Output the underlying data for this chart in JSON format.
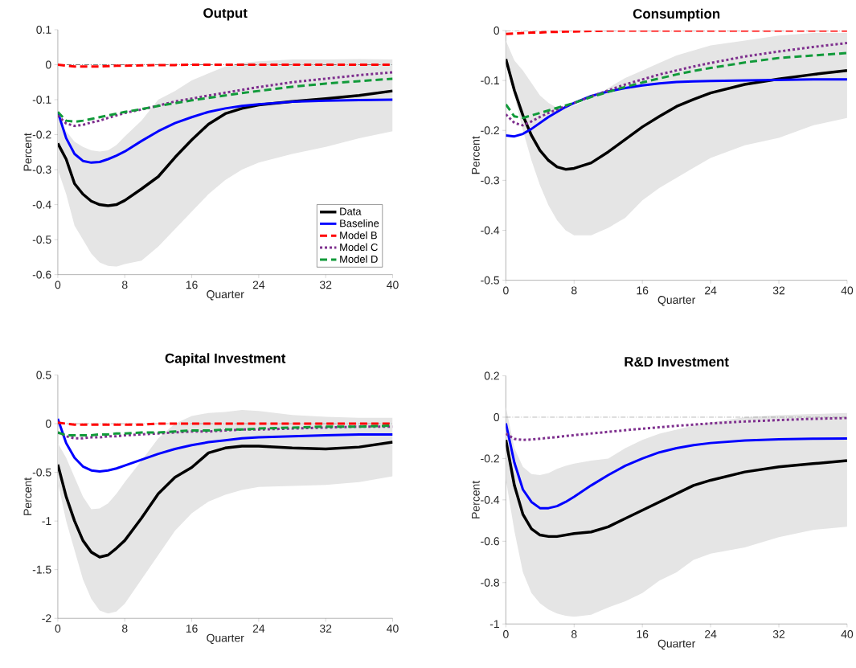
{
  "chart_data": [
    {
      "type": "line",
      "title": "Output",
      "xlabel": "Quarter",
      "ylabel": "Percent",
      "x": [
        0,
        1,
        2,
        3,
        4,
        5,
        6,
        7,
        8,
        10,
        12,
        14,
        16,
        18,
        20,
        22,
        24,
        28,
        32,
        36,
        40
      ],
      "xlim": [
        0,
        40
      ],
      "xticks": [
        0,
        8,
        16,
        24,
        32,
        40
      ],
      "ylim": [
        -0.6,
        0.1
      ],
      "yticks": [
        -0.6,
        -0.5,
        -0.4,
        -0.3,
        -0.2,
        -0.1,
        0,
        0.1
      ],
      "ref_lines": [
        {
          "axis": "y",
          "value": 0,
          "color": "#555555"
        }
      ],
      "legend": "bottom right",
      "series": [
        {
          "name": "Data",
          "color": "#000000",
          "line_style": "solid",
          "values": [
            -0.225,
            -0.27,
            -0.34,
            -0.37,
            -0.39,
            -0.4,
            -0.403,
            -0.4,
            -0.388,
            -0.355,
            -0.32,
            -0.265,
            -0.215,
            -0.17,
            -0.14,
            -0.125,
            -0.115,
            -0.105,
            -0.097,
            -0.088,
            -0.075
          ],
          "lower": [
            -0.3,
            -0.37,
            -0.46,
            -0.5,
            -0.54,
            -0.565,
            -0.575,
            -0.577,
            -0.57,
            -0.56,
            -0.52,
            -0.47,
            -0.42,
            -0.37,
            -0.33,
            -0.3,
            -0.28,
            -0.255,
            -0.235,
            -0.21,
            -0.19
          ],
          "upper": [
            -0.15,
            -0.19,
            -0.22,
            -0.235,
            -0.245,
            -0.248,
            -0.245,
            -0.23,
            -0.205,
            -0.16,
            -0.1,
            -0.075,
            -0.045,
            -0.025,
            -0.005,
            0.005,
            0.01,
            0.015,
            0.015,
            0.016,
            0.015
          ]
        },
        {
          "name": "Baseline",
          "color": "#0000ff",
          "line_style": "solid",
          "values": [
            -0.135,
            -0.21,
            -0.255,
            -0.275,
            -0.28,
            -0.278,
            -0.27,
            -0.26,
            -0.248,
            -0.218,
            -0.19,
            -0.167,
            -0.15,
            -0.135,
            -0.125,
            -0.118,
            -0.113,
            -0.106,
            -0.103,
            -0.101,
            -0.1
          ]
        },
        {
          "name": "Model B",
          "color": "#ff0000",
          "line_style": "dashed",
          "values": [
            0,
            -0.003,
            -0.005,
            -0.005,
            -0.005,
            -0.005,
            -0.004,
            -0.003,
            -0.003,
            -0.002,
            -0.001,
            -0.001,
            0,
            0,
            0,
            0,
            0,
            0,
            0,
            0,
            0
          ]
        },
        {
          "name": "Model C",
          "color": "#7e2f8e",
          "line_style": "dotted",
          "values": [
            -0.145,
            -0.168,
            -0.175,
            -0.172,
            -0.165,
            -0.16,
            -0.152,
            -0.145,
            -0.138,
            -0.128,
            -0.117,
            -0.105,
            -0.097,
            -0.088,
            -0.08,
            -0.072,
            -0.064,
            -0.05,
            -0.04,
            -0.03,
            -0.022
          ]
        },
        {
          "name": "Model D",
          "color": "#119a3a",
          "line_style": "dashed",
          "values": [
            -0.135,
            -0.16,
            -0.163,
            -0.16,
            -0.155,
            -0.15,
            -0.145,
            -0.14,
            -0.135,
            -0.127,
            -0.118,
            -0.11,
            -0.102,
            -0.095,
            -0.088,
            -0.081,
            -0.075,
            -0.063,
            -0.054,
            -0.047,
            -0.04
          ]
        }
      ]
    },
    {
      "type": "line",
      "title": "Consumption",
      "xlabel": "Quarter",
      "ylabel": "Percent",
      "x": [
        0,
        1,
        2,
        3,
        4,
        5,
        6,
        7,
        8,
        10,
        12,
        14,
        16,
        18,
        20,
        22,
        24,
        28,
        32,
        36,
        40
      ],
      "xlim": [
        0,
        40
      ],
      "xticks": [
        0,
        8,
        16,
        24,
        32,
        40
      ],
      "ylim": [
        -0.5,
        0
      ],
      "yticks": [
        -0.5,
        -0.4,
        -0.3,
        -0.2,
        -0.1,
        0
      ],
      "ref_lines": [
        {
          "axis": "y",
          "value": 0,
          "color": "#555555"
        }
      ],
      "series": [
        {
          "color": "#000000",
          "line_style": "solid",
          "values": [
            -0.057,
            -0.12,
            -0.17,
            -0.21,
            -0.24,
            -0.26,
            -0.273,
            -0.278,
            -0.276,
            -0.265,
            -0.243,
            -0.218,
            -0.193,
            -0.172,
            -0.152,
            -0.138,
            -0.125,
            -0.108,
            -0.097,
            -0.088,
            -0.08
          ],
          "lower": [
            -0.06,
            -0.13,
            -0.2,
            -0.26,
            -0.31,
            -0.35,
            -0.38,
            -0.4,
            -0.41,
            -0.41,
            -0.395,
            -0.375,
            -0.34,
            -0.315,
            -0.295,
            -0.275,
            -0.255,
            -0.23,
            -0.215,
            -0.19,
            -0.175
          ],
          "upper": [
            -0.02,
            -0.06,
            -0.08,
            -0.105,
            -0.13,
            -0.145,
            -0.155,
            -0.155,
            -0.15,
            -0.135,
            -0.115,
            -0.095,
            -0.08,
            -0.065,
            -0.05,
            -0.04,
            -0.03,
            -0.02,
            -0.01,
            -0.005,
            -0.005
          ]
        },
        {
          "color": "#0000ff",
          "line_style": "solid",
          "values": [
            -0.21,
            -0.212,
            -0.207,
            -0.197,
            -0.185,
            -0.173,
            -0.163,
            -0.153,
            -0.145,
            -0.131,
            -0.122,
            -0.115,
            -0.11,
            -0.106,
            -0.103,
            -0.102,
            -0.101,
            -0.1,
            -0.099,
            -0.098,
            -0.098
          ]
        },
        {
          "color": "#ff0000",
          "line_style": "dashed",
          "values": [
            -0.007,
            -0.006,
            -0.005,
            -0.004,
            -0.004,
            -0.003,
            -0.003,
            -0.002,
            -0.002,
            -0.001,
            0,
            0,
            0,
            0,
            0,
            0,
            0,
            0,
            0,
            0,
            0
          ]
        },
        {
          "color": "#7e2f8e",
          "line_style": "dotted",
          "values": [
            -0.168,
            -0.185,
            -0.19,
            -0.182,
            -0.173,
            -0.165,
            -0.158,
            -0.151,
            -0.145,
            -0.132,
            -0.12,
            -0.108,
            -0.098,
            -0.088,
            -0.08,
            -0.072,
            -0.065,
            -0.052,
            -0.042,
            -0.033,
            -0.025
          ]
        },
        {
          "color": "#119a3a",
          "line_style": "dashed",
          "values": [
            -0.148,
            -0.172,
            -0.175,
            -0.17,
            -0.165,
            -0.16,
            -0.155,
            -0.15,
            -0.145,
            -0.133,
            -0.123,
            -0.113,
            -0.104,
            -0.096,
            -0.088,
            -0.081,
            -0.075,
            -0.064,
            -0.055,
            -0.05,
            -0.045
          ]
        }
      ]
    },
    {
      "type": "line",
      "title": "Capital Investment",
      "xlabel": "Quarter",
      "ylabel": "Percent",
      "x": [
        0,
        1,
        2,
        3,
        4,
        5,
        6,
        7,
        8,
        10,
        12,
        14,
        16,
        18,
        20,
        22,
        24,
        28,
        32,
        36,
        40
      ],
      "xlim": [
        0,
        40
      ],
      "xticks": [
        0,
        8,
        16,
        24,
        32,
        40
      ],
      "ylim": [
        -2,
        0.5
      ],
      "yticks": [
        -2,
        -1.5,
        -1,
        -0.5,
        0,
        0.5
      ],
      "ref_lines": [
        {
          "axis": "y",
          "value": 0,
          "color": "#555555"
        }
      ],
      "series": [
        {
          "color": "#000000",
          "line_style": "solid",
          "values": [
            -0.42,
            -0.75,
            -1.0,
            -1.2,
            -1.32,
            -1.37,
            -1.35,
            -1.28,
            -1.2,
            -0.97,
            -0.72,
            -0.55,
            -0.45,
            -0.3,
            -0.25,
            -0.23,
            -0.23,
            -0.25,
            -0.26,
            -0.24,
            -0.19
          ],
          "lower": [
            -0.6,
            -1.0,
            -1.3,
            -1.6,
            -1.8,
            -1.92,
            -1.95,
            -1.93,
            -1.85,
            -1.6,
            -1.35,
            -1.1,
            -0.92,
            -0.8,
            -0.73,
            -0.68,
            -0.65,
            -0.64,
            -0.63,
            -0.6,
            -0.54
          ],
          "upper": [
            -0.2,
            -0.35,
            -0.55,
            -0.75,
            -0.88,
            -0.87,
            -0.82,
            -0.72,
            -0.6,
            -0.38,
            -0.15,
            0,
            0.08,
            0.11,
            0.12,
            0.14,
            0.13,
            0.09,
            0.07,
            0.06,
            0.06
          ]
        },
        {
          "color": "#0000ff",
          "line_style": "solid",
          "values": [
            0.05,
            -0.2,
            -0.35,
            -0.44,
            -0.48,
            -0.49,
            -0.48,
            -0.46,
            -0.43,
            -0.37,
            -0.31,
            -0.26,
            -0.22,
            -0.19,
            -0.17,
            -0.15,
            -0.14,
            -0.13,
            -0.12,
            -0.11,
            -0.11
          ]
        },
        {
          "color": "#ff0000",
          "line_style": "dashed",
          "values": [
            0.01,
            0,
            -0.01,
            -0.01,
            -0.01,
            -0.01,
            -0.01,
            -0.01,
            -0.01,
            -0.01,
            0,
            0,
            0,
            0,
            0,
            0,
            0,
            0,
            0,
            0,
            0
          ]
        },
        {
          "color": "#7e2f8e",
          "line_style": "dotted",
          "values": [
            -0.09,
            -0.13,
            -0.15,
            -0.15,
            -0.14,
            -0.14,
            -0.13,
            -0.13,
            -0.12,
            -0.11,
            -0.1,
            -0.09,
            -0.08,
            -0.08,
            -0.07,
            -0.06,
            -0.06,
            -0.05,
            -0.04,
            -0.03,
            -0.03
          ]
        },
        {
          "color": "#119a3a",
          "line_style": "dashed",
          "values": [
            -0.09,
            -0.12,
            -0.12,
            -0.12,
            -0.12,
            -0.11,
            -0.11,
            -0.1,
            -0.1,
            -0.09,
            -0.09,
            -0.08,
            -0.07,
            -0.07,
            -0.06,
            -0.06,
            -0.05,
            -0.04,
            -0.03,
            -0.03,
            -0.02
          ]
        }
      ]
    },
    {
      "type": "line",
      "title": "R&D Investment",
      "xlabel": "Quarter",
      "ylabel": "Percent",
      "x": [
        0,
        1,
        2,
        3,
        4,
        5,
        6,
        7,
        8,
        10,
        12,
        14,
        16,
        18,
        20,
        22,
        24,
        28,
        32,
        36,
        40
      ],
      "xlim": [
        0,
        40
      ],
      "xticks": [
        0,
        8,
        16,
        24,
        32,
        40
      ],
      "ylim": [
        -1,
        0.2
      ],
      "yticks": [
        -1,
        -0.8,
        -0.6,
        -0.4,
        -0.2,
        0,
        0.2
      ],
      "ref_lines": [
        {
          "axis": "y",
          "value": 0,
          "color": "#555555"
        }
      ],
      "series": [
        {
          "color": "#000000",
          "line_style": "solid",
          "values": [
            -0.11,
            -0.33,
            -0.47,
            -0.54,
            -0.57,
            -0.577,
            -0.577,
            -0.57,
            -0.563,
            -0.555,
            -0.53,
            -0.49,
            -0.45,
            -0.41,
            -0.37,
            -0.33,
            -0.305,
            -0.265,
            -0.24,
            -0.225,
            -0.21
          ],
          "lower": [
            -0.3,
            -0.55,
            -0.75,
            -0.85,
            -0.9,
            -0.93,
            -0.95,
            -0.96,
            -0.965,
            -0.955,
            -0.92,
            -0.89,
            -0.85,
            -0.79,
            -0.75,
            -0.69,
            -0.66,
            -0.63,
            -0.58,
            -0.545,
            -0.53
          ],
          "upper": [
            0.05,
            -0.15,
            -0.24,
            -0.275,
            -0.28,
            -0.27,
            -0.25,
            -0.235,
            -0.225,
            -0.21,
            -0.2,
            -0.15,
            -0.11,
            -0.08,
            -0.06,
            -0.04,
            -0.025,
            0,
            0.01,
            0.015,
            0.02
          ]
        },
        {
          "color": "#0000ff",
          "line_style": "solid",
          "values": [
            -0.03,
            -0.22,
            -0.35,
            -0.41,
            -0.44,
            -0.44,
            -0.43,
            -0.41,
            -0.385,
            -0.33,
            -0.28,
            -0.235,
            -0.2,
            -0.17,
            -0.15,
            -0.135,
            -0.125,
            -0.113,
            -0.107,
            -0.104,
            -0.103
          ]
        },
        {
          "color": "#7e2f8e",
          "line_style": "dotted",
          "values": [
            -0.08,
            -0.105,
            -0.11,
            -0.108,
            -0.104,
            -0.1,
            -0.096,
            -0.091,
            -0.087,
            -0.079,
            -0.071,
            -0.063,
            -0.056,
            -0.049,
            -0.042,
            -0.036,
            -0.03,
            -0.021,
            -0.014,
            -0.008,
            -0.004
          ]
        }
      ]
    }
  ]
}
